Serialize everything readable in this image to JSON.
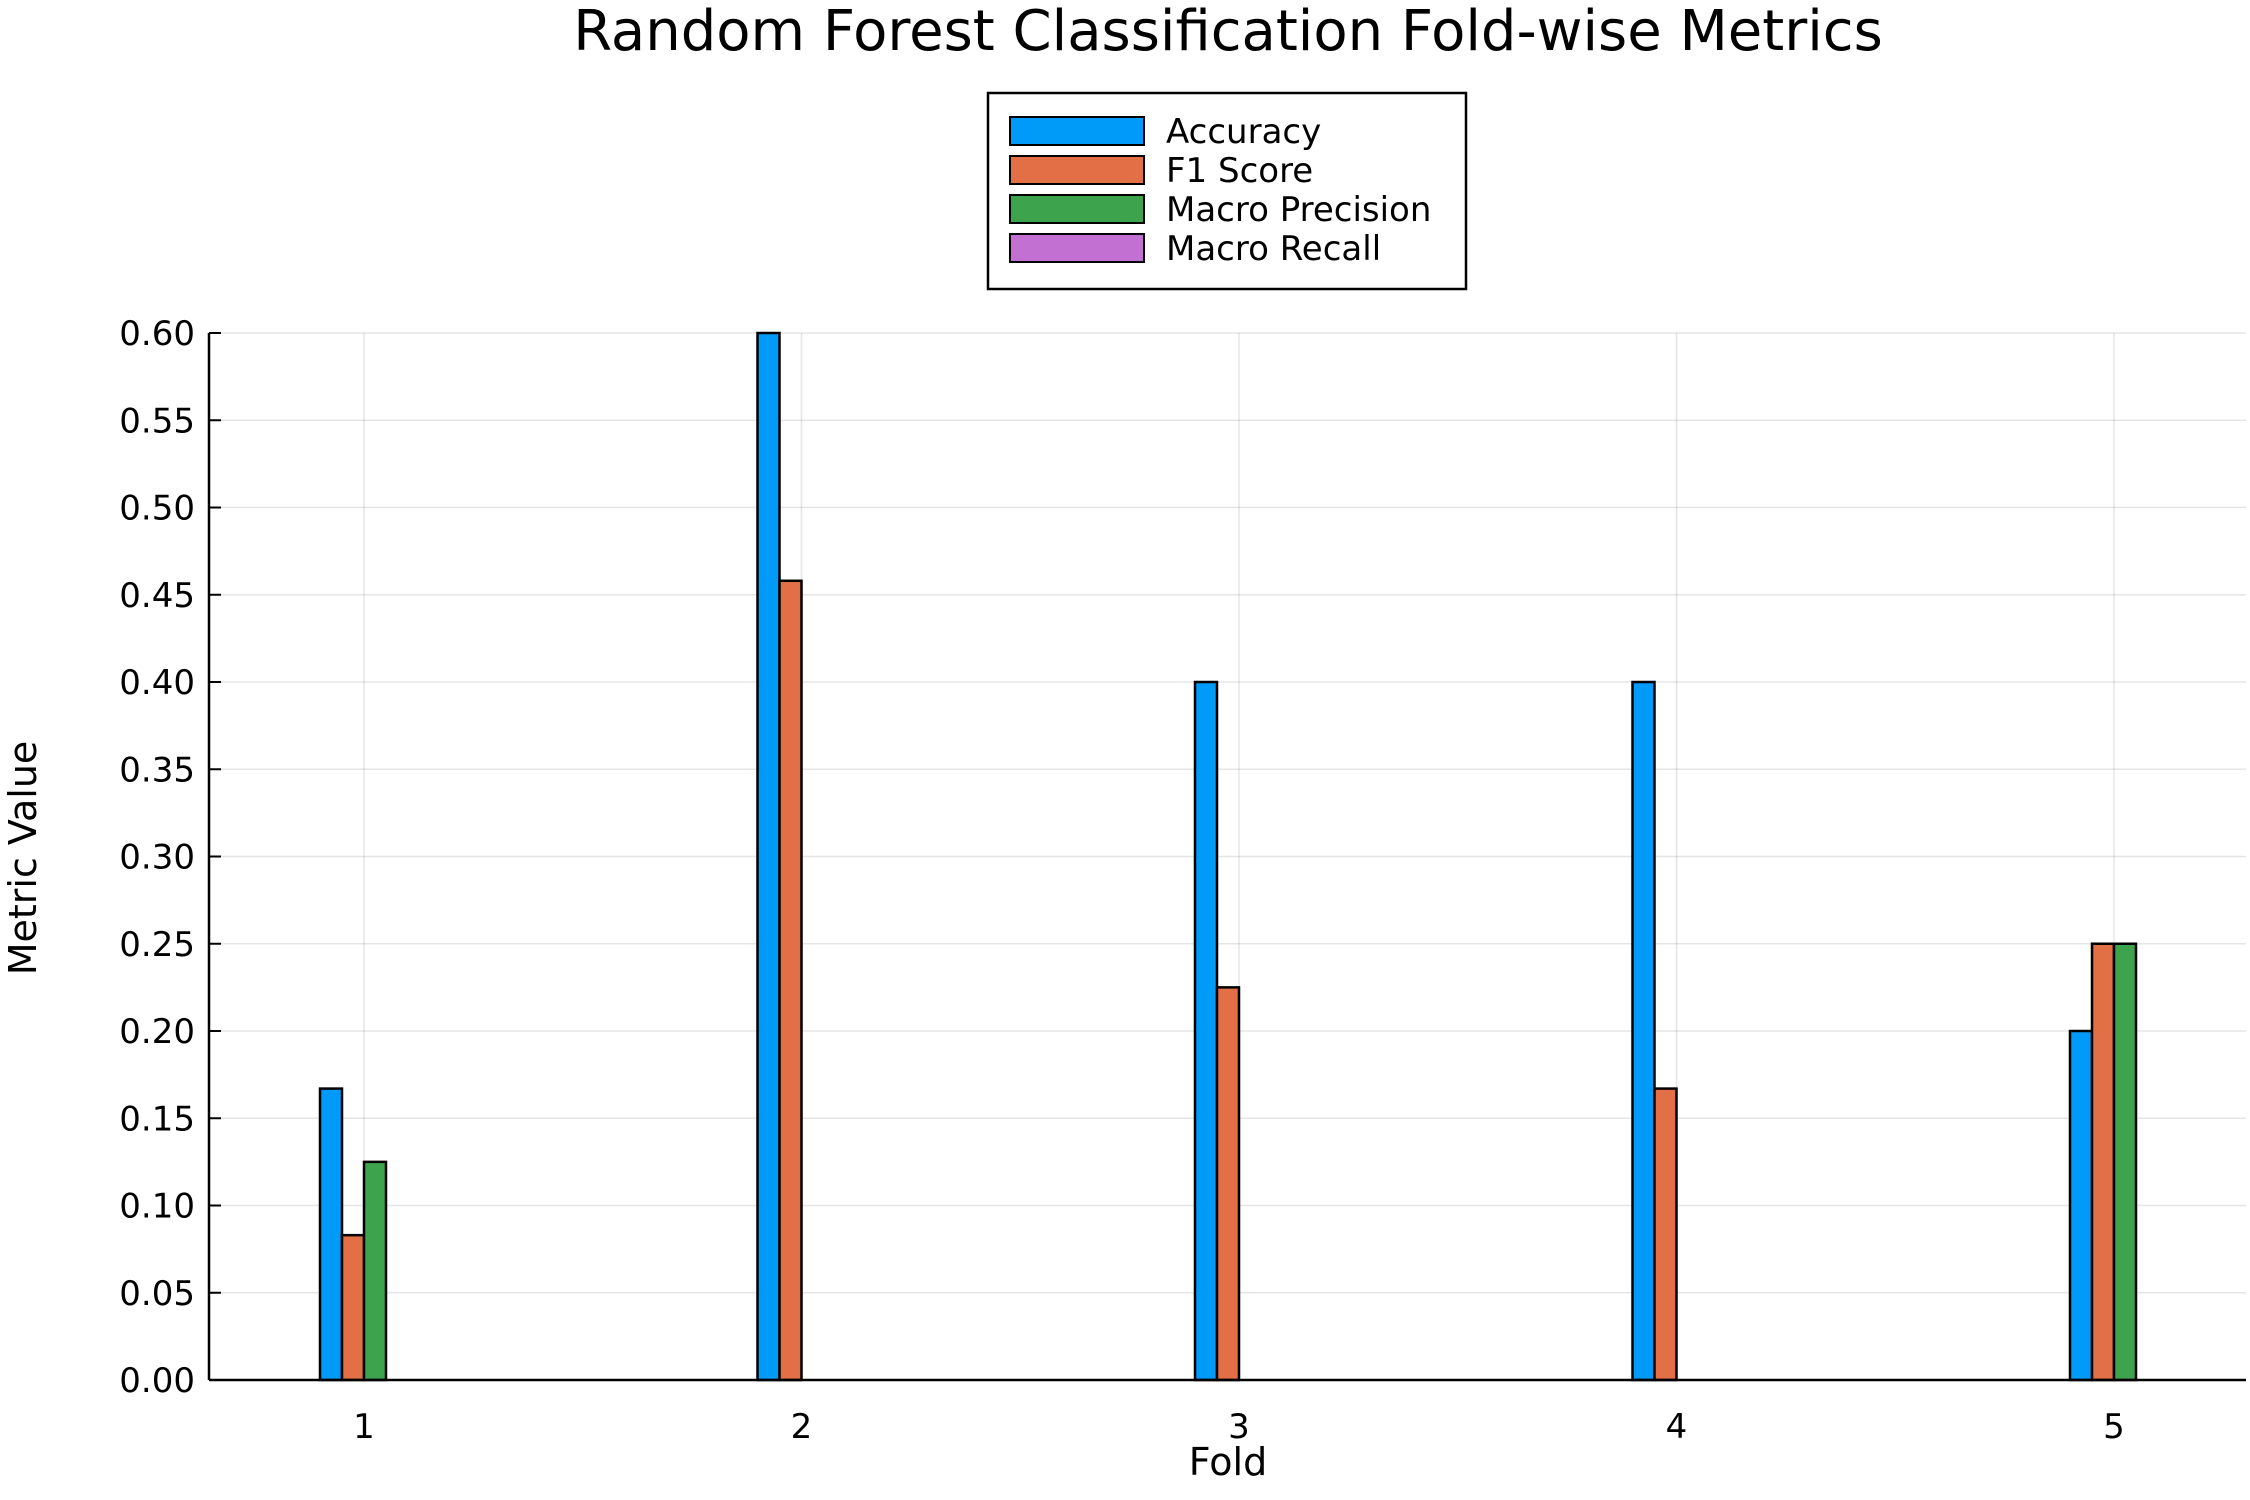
{
  "chart_data": {
    "type": "bar",
    "title": "Random Forest Classification Fold-wise Metrics",
    "xlabel": "Fold",
    "ylabel": "Metric Value",
    "categories": [
      "1",
      "2",
      "3",
      "4",
      "5"
    ],
    "ylim": [
      0,
      0.6
    ],
    "yticks": [
      "0.00",
      "0.05",
      "0.10",
      "0.15",
      "0.20",
      "0.25",
      "0.30",
      "0.35",
      "0.40",
      "0.45",
      "0.50",
      "0.55",
      "0.60"
    ],
    "grid": true,
    "legend_position": "top-center",
    "series": [
      {
        "name": "Accuracy",
        "color": "#009af9",
        "values": [
          0.167,
          0.6,
          0.4,
          0.4,
          0.2
        ]
      },
      {
        "name": "F1 Score",
        "color": "#e26f46",
        "values": [
          0.083,
          0.458,
          0.225,
          0.167,
          0.25
        ]
      },
      {
        "name": "Macro Precision",
        "color": "#3da44d",
        "values": [
          0.125,
          0.0,
          0.0,
          0.0,
          0.25
        ]
      },
      {
        "name": "Macro Recall",
        "color": "#c271d2",
        "values": [
          0.0,
          0.0,
          0.0,
          0.0,
          0.0
        ]
      }
    ]
  }
}
